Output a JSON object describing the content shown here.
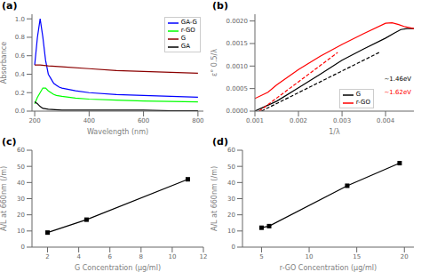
{
  "chart_data": [
    {
      "type": "line",
      "title": "(a)",
      "xlabel": "Wavelength (nm)",
      "ylabel": "Absorbance",
      "xlim": [
        190,
        820
      ],
      "ylim": [
        0.0,
        1.05
      ],
      "xticks": [
        200,
        400,
        600,
        800
      ],
      "yticks": [
        {
          "value": 0.0,
          "label": "0.0"
        },
        0.2,
        0.4,
        0.6,
        0.8,
        {
          "value": 1.0,
          "label": "1.0"
        }
      ],
      "legend": "upper right",
      "grid": false,
      "series": [
        {
          "name": "GA-G",
          "color": "blue",
          "x": [
            200,
            210,
            220,
            230,
            240,
            250,
            260,
            270,
            280,
            290,
            300,
            350,
            400,
            500,
            600,
            700,
            800
          ],
          "values": [
            0.5,
            0.8,
            1.0,
            0.8,
            0.55,
            0.4,
            0.35,
            0.3,
            0.28,
            0.26,
            0.25,
            0.22,
            0.2,
            0.18,
            0.17,
            0.16,
            0.15
          ]
        },
        {
          "name": "r-GO",
          "color": "lime",
          "x": [
            200,
            210,
            220,
            230,
            240,
            250,
            260,
            270,
            280,
            300,
            350,
            400,
            500,
            600,
            700,
            800
          ],
          "values": [
            0.08,
            0.15,
            0.2,
            0.25,
            0.25,
            0.22,
            0.2,
            0.18,
            0.17,
            0.16,
            0.14,
            0.13,
            0.12,
            0.11,
            0.105,
            0.1
          ]
        },
        {
          "name": "G",
          "color": "darkred",
          "x": [
            200,
            210,
            220,
            250,
            300,
            400,
            500,
            600,
            700,
            800
          ],
          "values": [
            0.5,
            0.5,
            0.5,
            0.49,
            0.48,
            0.46,
            0.44,
            0.43,
            0.42,
            0.41
          ]
        },
        {
          "name": "GA",
          "color": "black",
          "x": [
            200,
            210,
            220,
            230,
            250,
            300,
            400,
            500,
            600,
            700,
            800
          ],
          "values": [
            0.1,
            0.08,
            0.05,
            0.03,
            0.02,
            0.01,
            0.01,
            0.01,
            0.01,
            0.005,
            0.005
          ]
        }
      ]
    },
    {
      "type": "line",
      "title": "(b)",
      "xlabel": "1/λ",
      "ylabel": "ε° 0.5/λ",
      "xlim": [
        0.001,
        0.00465
      ],
      "ylim": [
        0.0,
        0.00215
      ],
      "xticks": [
        0.001,
        0.002,
        0.003,
        0.004
      ],
      "yticks": [
        {
          "value": 0.0,
          "label": "0.0000"
        },
        {
          "value": 0.0005,
          "label": "0.0005"
        },
        {
          "value": 0.001,
          "label": "0.0010"
        },
        {
          "value": 0.0015,
          "label": "0.0015"
        },
        {
          "value": 0.002,
          "label": "0.0020"
        }
      ],
      "legend": "lower right",
      "grid": false,
      "annotations": [
        {
          "text": "~1.46eV",
          "color": "black"
        },
        {
          "text": "~1.62eV",
          "color": "red"
        }
      ],
      "series": [
        {
          "name": "G",
          "color": "black",
          "line_style": "solid",
          "x": [
            0.001,
            0.0015,
            0.002,
            0.0025,
            0.003,
            0.0035,
            0.004,
            0.0042,
            0.00435,
            0.0045,
            0.00465
          ],
          "values": [
            0.0,
            0.00022,
            0.00052,
            0.00082,
            0.00113,
            0.00138,
            0.00162,
            0.00173,
            0.00181,
            0.00183,
            0.00183
          ]
        },
        {
          "name": "r-GO",
          "color": "red",
          "line_style": "solid",
          "x": [
            0.001,
            0.0013,
            0.0015,
            0.002,
            0.0025,
            0.003,
            0.0035,
            0.004,
            0.00415,
            0.0043,
            0.00445,
            0.00465
          ],
          "values": [
            0.00028,
            0.00042,
            0.00058,
            0.00092,
            0.00122,
            0.00148,
            0.00172,
            0.00195,
            0.00196,
            0.00192,
            0.00187,
            0.00183
          ]
        },
        {
          "color": "black",
          "line_style": "dashed",
          "x": [
            0.00115,
            0.00385
          ],
          "values": [
            0.0,
            0.0013
          ]
        },
        {
          "color": "red",
          "line_style": "dashed",
          "x": [
            0.0011,
            0.0029
          ],
          "values": [
            0.0,
            0.0013
          ]
        }
      ]
    },
    {
      "type": "line",
      "title": "(c)",
      "xlabel": "G Concentration (μg/ml)",
      "ylabel": "A/L at 660nm (/m)",
      "xlim": [
        1,
        12
      ],
      "ylim": [
        0,
        60
      ],
      "xticks": [
        2,
        4,
        6,
        8,
        10,
        12
      ],
      "yticks": [
        0,
        10,
        20,
        30,
        40,
        50,
        60
      ],
      "grid": false,
      "color": "black",
      "marker": "square",
      "x": [
        2.0,
        4.5,
        11.0
      ],
      "values": [
        9,
        17,
        42
      ]
    },
    {
      "type": "line",
      "title": "(d)",
      "xlabel": "r-GO Concentration (μg/ml)",
      "ylabel": "A/L at 660nm (/m)",
      "xlim": [
        3,
        21
      ],
      "ylim": [
        0,
        60
      ],
      "xticks": [
        5,
        10,
        15,
        20
      ],
      "yticks": [
        0,
        10,
        20,
        30,
        40,
        50,
        60
      ],
      "grid": false,
      "color": "black",
      "marker": "square",
      "x": [
        5.0,
        5.8,
        14.0,
        19.5
      ],
      "values": [
        12,
        13,
        38,
        52
      ]
    }
  ]
}
